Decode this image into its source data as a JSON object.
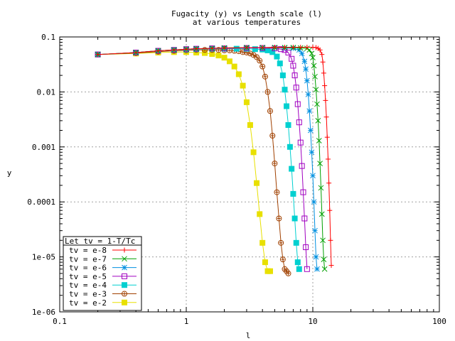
{
  "chart_data": {
    "type": "line",
    "title": "Fugacity (y) vs Length scale (l)",
    "subtitle": "at various temperatures",
    "xlabel": "l",
    "ylabel": "y",
    "xscale": "log",
    "yscale": "log",
    "xlim": [
      0.1,
      100
    ],
    "ylim": [
      1e-06,
      0.1
    ],
    "grid": true,
    "x_ticks": [
      0.1,
      1,
      10,
      100
    ],
    "x_tick_labels": [
      "0.1",
      "1",
      "10",
      "100"
    ],
    "y_ticks": [
      0.1,
      0.01,
      0.001,
      0.0001,
      1e-05,
      1e-06
    ],
    "y_tick_labels": [
      "0.1",
      "0.01",
      "0.001",
      "0.0001",
      "1e-05",
      "1e-06"
    ],
    "legend": {
      "position": "bottom-left",
      "title": "Let tv = 1-T/Tc"
    },
    "series": [
      {
        "name": "tv = e-8",
        "color": "#ff0000",
        "marker": "plus",
        "x": [
          0.2,
          0.4,
          0.6,
          0.8,
          1.0,
          1.2,
          1.6,
          2.0,
          3.0,
          4.0,
          5.0,
          6.0,
          7.0,
          8.0,
          9.0,
          10.0,
          10.6,
          11.0,
          11.4,
          11.8,
          12.0,
          12.2,
          12.4,
          12.6,
          12.8,
          13.0,
          13.2,
          13.4,
          13.6,
          13.8,
          14.0
        ],
        "y": [
          0.048,
          0.052,
          0.056,
          0.058,
          0.06,
          0.061,
          0.062,
          0.063,
          0.064,
          0.064,
          0.065,
          0.065,
          0.065,
          0.065,
          0.065,
          0.065,
          0.064,
          0.062,
          0.058,
          0.048,
          0.035,
          0.022,
          0.013,
          0.007,
          0.0035,
          0.0015,
          0.0006,
          0.00022,
          7e-05,
          2e-05,
          7e-06
        ]
      },
      {
        "name": "tv = e-7",
        "color": "#00a000",
        "marker": "cross",
        "x": [
          0.2,
          0.4,
          0.6,
          0.8,
          1.0,
          1.2,
          1.6,
          2.0,
          3.0,
          4.0,
          5.0,
          6.0,
          7.0,
          8.0,
          9.0,
          9.4,
          9.8,
          10.0,
          10.2,
          10.4,
          10.6,
          10.8,
          11.0,
          11.2,
          11.4,
          11.6,
          11.8,
          12.0,
          12.2,
          12.4
        ],
        "y": [
          0.048,
          0.052,
          0.056,
          0.058,
          0.06,
          0.061,
          0.062,
          0.063,
          0.064,
          0.064,
          0.064,
          0.064,
          0.064,
          0.063,
          0.062,
          0.058,
          0.05,
          0.042,
          0.03,
          0.019,
          0.011,
          0.006,
          0.003,
          0.0013,
          0.0005,
          0.00018,
          6e-05,
          2e-05,
          9e-06,
          6e-06
        ]
      },
      {
        "name": "tv = e-6",
        "color": "#0090e0",
        "marker": "star",
        "x": [
          0.2,
          0.4,
          0.6,
          0.8,
          1.0,
          1.2,
          1.6,
          2.0,
          3.0,
          4.0,
          5.0,
          6.0,
          7.0,
          7.8,
          8.2,
          8.6,
          8.8,
          9.0,
          9.2,
          9.4,
          9.6,
          9.8,
          10.0,
          10.2,
          10.4,
          10.6,
          10.8
        ],
        "y": [
          0.048,
          0.052,
          0.056,
          0.058,
          0.06,
          0.061,
          0.062,
          0.063,
          0.064,
          0.064,
          0.064,
          0.063,
          0.062,
          0.058,
          0.05,
          0.036,
          0.026,
          0.016,
          0.009,
          0.0045,
          0.002,
          0.0008,
          0.0003,
          0.0001,
          3e-05,
          1e-05,
          6e-06
        ]
      },
      {
        "name": "tv = e-5",
        "color": "#a000c0",
        "marker": "square-open",
        "x": [
          0.2,
          0.4,
          0.6,
          0.8,
          1.0,
          1.2,
          1.6,
          2.0,
          3.0,
          4.0,
          5.0,
          5.6,
          6.0,
          6.4,
          6.8,
          7.0,
          7.2,
          7.4,
          7.6,
          7.8,
          8.0,
          8.2,
          8.4,
          8.6,
          8.8,
          9.0
        ],
        "y": [
          0.048,
          0.052,
          0.056,
          0.058,
          0.06,
          0.061,
          0.062,
          0.062,
          0.063,
          0.063,
          0.062,
          0.06,
          0.058,
          0.052,
          0.04,
          0.03,
          0.02,
          0.012,
          0.006,
          0.0028,
          0.0012,
          0.00045,
          0.00015,
          5e-05,
          1.5e-05,
          6e-06
        ]
      },
      {
        "name": "tv = e-4",
        "color": "#00d0d0",
        "marker": "square-filled",
        "x": [
          0.2,
          0.4,
          0.6,
          0.8,
          1.0,
          1.2,
          1.6,
          2.0,
          2.5,
          3.0,
          3.5,
          4.0,
          4.4,
          4.8,
          5.2,
          5.5,
          5.8,
          6.0,
          6.2,
          6.4,
          6.6,
          6.8,
          7.0,
          7.2,
          7.4,
          7.6,
          7.8
        ],
        "y": [
          0.048,
          0.052,
          0.056,
          0.058,
          0.059,
          0.06,
          0.061,
          0.061,
          0.061,
          0.061,
          0.06,
          0.059,
          0.057,
          0.053,
          0.044,
          0.033,
          0.02,
          0.011,
          0.0055,
          0.0025,
          0.001,
          0.0004,
          0.00014,
          5e-05,
          1.8e-05,
          8e-06,
          6e-06
        ]
      },
      {
        "name": "tv = e-3",
        "color": "#a04000",
        "marker": "circle-cross",
        "x": [
          0.2,
          0.4,
          0.6,
          0.8,
          1.0,
          1.2,
          1.4,
          1.6,
          1.8,
          2.0,
          2.2,
          2.4,
          2.6,
          2.8,
          3.0,
          3.2,
          3.4,
          3.6,
          3.8,
          4.0,
          4.2,
          4.4,
          4.6,
          4.8,
          5.0,
          5.2,
          5.4,
          5.6,
          5.8,
          6.0,
          6.2,
          6.4
        ],
        "y": [
          0.048,
          0.051,
          0.054,
          0.056,
          0.057,
          0.058,
          0.058,
          0.058,
          0.058,
          0.057,
          0.057,
          0.056,
          0.055,
          0.053,
          0.052,
          0.05,
          0.047,
          0.043,
          0.037,
          0.029,
          0.019,
          0.01,
          0.0045,
          0.0016,
          0.0005,
          0.00015,
          5e-05,
          1.8e-05,
          9e-06,
          6e-06,
          5.5e-06,
          5e-06
        ]
      },
      {
        "name": "tv = e-2",
        "color": "#e8e000",
        "marker": "square-filled",
        "x": [
          0.2,
          0.4,
          0.6,
          0.8,
          1.0,
          1.2,
          1.4,
          1.6,
          1.8,
          2.0,
          2.2,
          2.4,
          2.6,
          2.8,
          3.0,
          3.2,
          3.4,
          3.6,
          3.8,
          4.0,
          4.2,
          4.4,
          4.6
        ],
        "y": [
          0.048,
          0.05,
          0.052,
          0.053,
          0.053,
          0.052,
          0.051,
          0.049,
          0.046,
          0.042,
          0.036,
          0.029,
          0.021,
          0.013,
          0.0065,
          0.0025,
          0.0008,
          0.00022,
          6e-05,
          1.8e-05,
          8e-06,
          5.5e-06,
          5.5e-06
        ]
      }
    ]
  }
}
